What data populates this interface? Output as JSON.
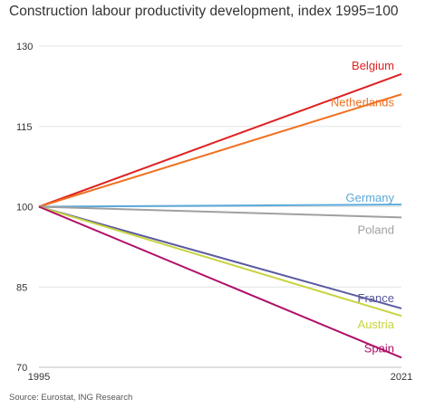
{
  "title": "Construction labour productivity development, index 1995=100",
  "source": "Source: Eurostat, ING Research",
  "chart_data": {
    "type": "line",
    "title": "Construction labour productivity development, index 1995=100",
    "x": [
      1995,
      2021
    ],
    "xticks": [
      "1995",
      "2021"
    ],
    "ylim": [
      70,
      130
    ],
    "yticks": [
      70,
      85,
      100,
      115,
      130
    ],
    "grid": true,
    "legend": "labels at line ends",
    "series": [
      {
        "name": "Belgium",
        "color": "#e02020",
        "values": [
          100,
          124.8
        ]
      },
      {
        "name": "Netherlands",
        "color": "#f07020",
        "values": [
          100,
          121
        ]
      },
      {
        "name": "Germany",
        "color": "#5aa9d8",
        "values": [
          100,
          100.4
        ]
      },
      {
        "name": "Poland",
        "color": "#a0a0a0",
        "values": [
          100,
          98
        ]
      },
      {
        "name": "France",
        "color": "#5a5aa0",
        "values": [
          100,
          81
        ]
      },
      {
        "name": "Austria",
        "color": "#c8d440",
        "values": [
          100,
          79.6
        ]
      },
      {
        "name": "Spain",
        "color": "#b0106a",
        "values": [
          100,
          71.8
        ]
      }
    ]
  }
}
